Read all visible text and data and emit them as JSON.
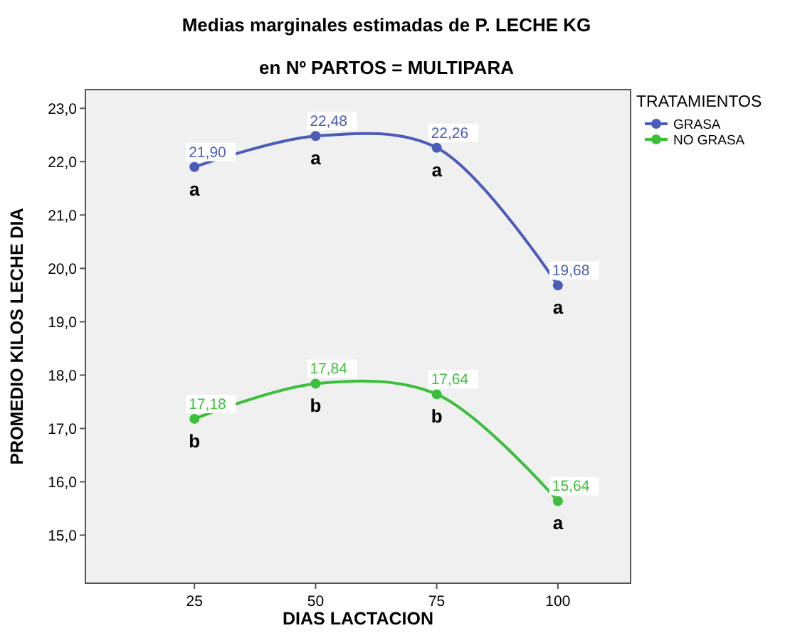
{
  "chart_data": {
    "type": "line",
    "title": "Medias marginales estimadas de P. LECHE KG",
    "subtitle": "en Nº PARTOS = MULTIPARA",
    "xlabel": "DIAS LACTACION",
    "ylabel": "PROMEDIO KILOS LECHE DIA",
    "legend_title": "TRATAMIENTOS",
    "legend": "right",
    "marker": "circle",
    "line_style": "solid",
    "x": [
      25,
      50,
      75,
      100
    ],
    "xlim": [
      2.5,
      115
    ],
    "xticks": [
      25,
      50,
      75,
      100
    ],
    "ylim": [
      14.1,
      23.35
    ],
    "yticks": [
      {
        "value": 15,
        "label": "15,0"
      },
      {
        "value": 16,
        "label": "16,0"
      },
      {
        "value": 17,
        "label": "17,0"
      },
      {
        "value": 18,
        "label": "18,0"
      },
      {
        "value": 19,
        "label": "19,0"
      },
      {
        "value": 20,
        "label": "20,0"
      },
      {
        "value": 21,
        "label": "21,0"
      },
      {
        "value": 22,
        "label": "22,0"
      },
      {
        "value": 23,
        "label": "23,0"
      }
    ],
    "series": [
      {
        "name": "GRASA",
        "color": "#4a5cb8",
        "values": [
          21.9,
          22.48,
          22.26,
          19.68
        ],
        "value_labels": [
          "21,90",
          "22,48",
          "22,26",
          "19,68"
        ]
      },
      {
        "name": "NO GRASA",
        "color": "#3cc03c",
        "values": [
          17.18,
          17.84,
          17.64,
          15.64
        ],
        "value_labels": [
          "17,18",
          "17,84",
          "17,64",
          "15,64"
        ]
      }
    ],
    "annotations": [
      {
        "text": "a",
        "x": 25,
        "y": 21.9
      },
      {
        "text": "a",
        "x": 50,
        "y": 22.48
      },
      {
        "text": "a",
        "x": 75,
        "y": 22.26
      },
      {
        "text": "a",
        "x": 100,
        "y": 19.68
      },
      {
        "text": "b",
        "x": 25,
        "y": 17.18
      },
      {
        "text": "b",
        "x": 50,
        "y": 17.84
      },
      {
        "text": "b",
        "x": 75,
        "y": 17.64
      },
      {
        "text": "a",
        "x": 100,
        "y": 15.64
      }
    ]
  }
}
